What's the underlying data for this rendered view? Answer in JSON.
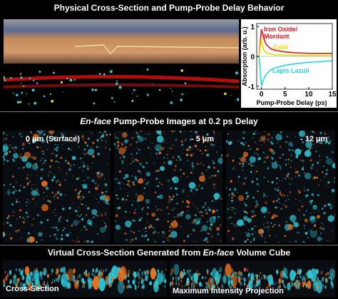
{
  "top": {
    "title": "Physical Cross-Section and Pump-Probe Delay Behavior"
  },
  "chart_data": {
    "type": "line",
    "x_label": "Pump-Probe Delay (ps)",
    "y_label": "Absorption (arb. u.)",
    "x": [
      -1,
      -0.5,
      0,
      0.2,
      0.5,
      1,
      2,
      3,
      5,
      7,
      10,
      15
    ],
    "series": [
      {
        "name": "Iron Oxide/ Mordant",
        "color": "#e8141e",
        "values": [
          0,
          0,
          0.9,
          0.8,
          0.6,
          0.4,
          0.25,
          0.2,
          0.15,
          0.12,
          0.1,
          0.1
        ]
      },
      {
        "name": "Gold",
        "color": "#e6e000",
        "values": [
          0,
          0,
          0.6,
          0.4,
          0.2,
          0.12,
          0.08,
          0.05,
          0.04,
          0.03,
          0.03,
          0.03
        ]
      },
      {
        "name": "Lapis Lazuli",
        "color": "#22d8e8",
        "values": [
          0,
          0,
          -1,
          -0.9,
          -0.75,
          -0.6,
          -0.45,
          -0.38,
          -0.3,
          -0.25,
          -0.2,
          -0.15
        ]
      }
    ],
    "xlim": [
      -1,
      15
    ],
    "ylim": [
      -1.1,
      1.1
    ],
    "xticks": [
      0,
      5,
      10,
      15
    ],
    "yticks": [
      -1,
      0,
      1
    ]
  },
  "enface": {
    "title": [
      "En-face",
      " Pump-Probe Images at 0.2 ps Delay"
    ],
    "panels": [
      "0 µm (Surface)",
      "- 5 µm",
      "- 12 µm"
    ]
  },
  "virtual": {
    "title": [
      "Virtual Cross-Section Generated from ",
      "En-face",
      " Volume Cube"
    ],
    "panels": [
      "Cross-Section",
      "Maximum Intensity Projection"
    ]
  }
}
